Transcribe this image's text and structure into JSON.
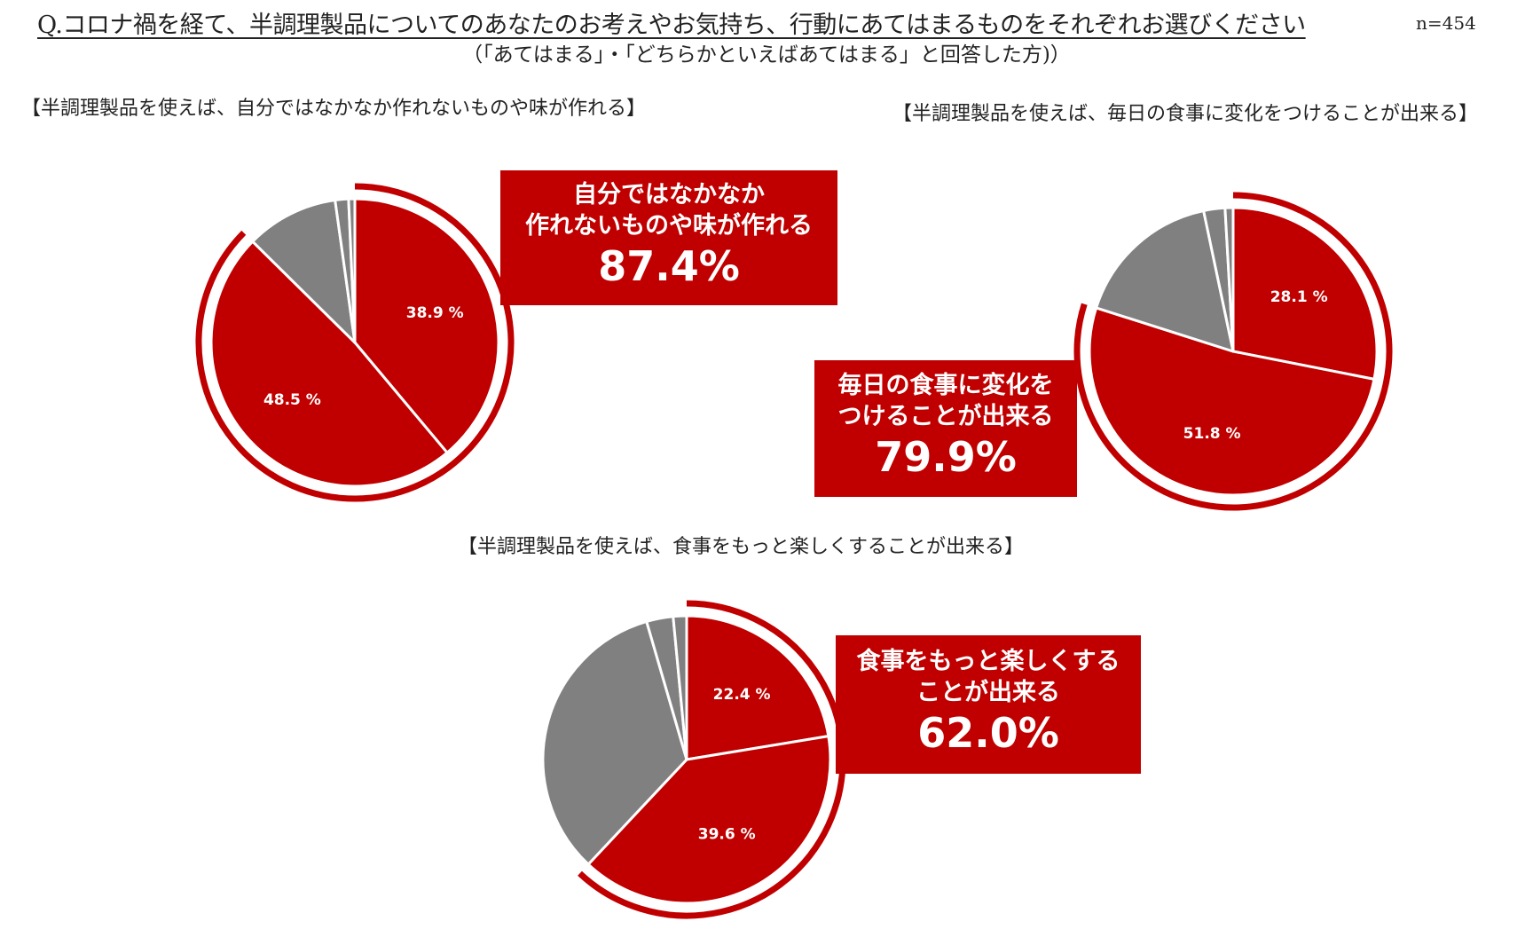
{
  "header": {
    "question": "Q.コロナ禍を経て、半調理製品についてのあなたのお考えやお気持ち、行動にあてはまるものをそれぞれお選びください",
    "n": "n=454",
    "subtitle": "（「あてはまる」・「どちらかといえばあてはまる」と回答した方)）"
  },
  "colors": {
    "red": "#c00000",
    "gray": "#808080",
    "light_gray": "#a6a6a6",
    "background": "#ffffff"
  },
  "chart_data": [
    {
      "type": "pie",
      "title": "【半調理製品を使えば、自分ではなかなか作れないものや味が作れる】",
      "slices": [
        {
          "value": 38.9,
          "label": "38.9 %",
          "color": "#c00000"
        },
        {
          "value": 48.5,
          "label": "48.5 %",
          "color": "#c00000"
        },
        {
          "value": 10.4,
          "label": "",
          "color": "#808080"
        },
        {
          "value": 1.5,
          "label": "",
          "color": "#808080"
        },
        {
          "value": 0.7,
          "label": "",
          "color": "#808080"
        }
      ],
      "highlight_value": 87.4,
      "callout": {
        "lines": [
          "自分ではなかなか",
          "作れないものや味が作れる"
        ],
        "value": "87.4%"
      }
    },
    {
      "type": "pie",
      "title": "【半調理製品を使えば、毎日の食事に変化をつけることが出来る】",
      "slices": [
        {
          "value": 28.1,
          "label": "28.1 %",
          "color": "#c00000"
        },
        {
          "value": 51.8,
          "label": "51.8 %",
          "color": "#c00000"
        },
        {
          "value": 16.8,
          "label": "",
          "color": "#808080"
        },
        {
          "value": 2.4,
          "label": "",
          "color": "#808080"
        },
        {
          "value": 0.9,
          "label": "",
          "color": "#808080"
        }
      ],
      "highlight_value": 79.9,
      "callout": {
        "lines": [
          "毎日の食事に変化を",
          "つけることが出来る"
        ],
        "value": "79.9%"
      }
    },
    {
      "type": "pie",
      "title": "【半調理製品を使えば、食事をもっと楽しくすることが出来る】",
      "slices": [
        {
          "value": 22.4,
          "label": "22.4 %",
          "color": "#c00000"
        },
        {
          "value": 39.6,
          "label": "39.6 %",
          "color": "#c00000"
        },
        {
          "value": 33.5,
          "label": "",
          "color": "#808080"
        },
        {
          "value": 3.0,
          "label": "",
          "color": "#808080"
        },
        {
          "value": 1.5,
          "label": "",
          "color": "#808080"
        }
      ],
      "highlight_value": 62.0,
      "callout": {
        "lines": [
          "食事をもっと楽しくする",
          "ことが出来る"
        ],
        "value": "62.0%"
      }
    }
  ]
}
